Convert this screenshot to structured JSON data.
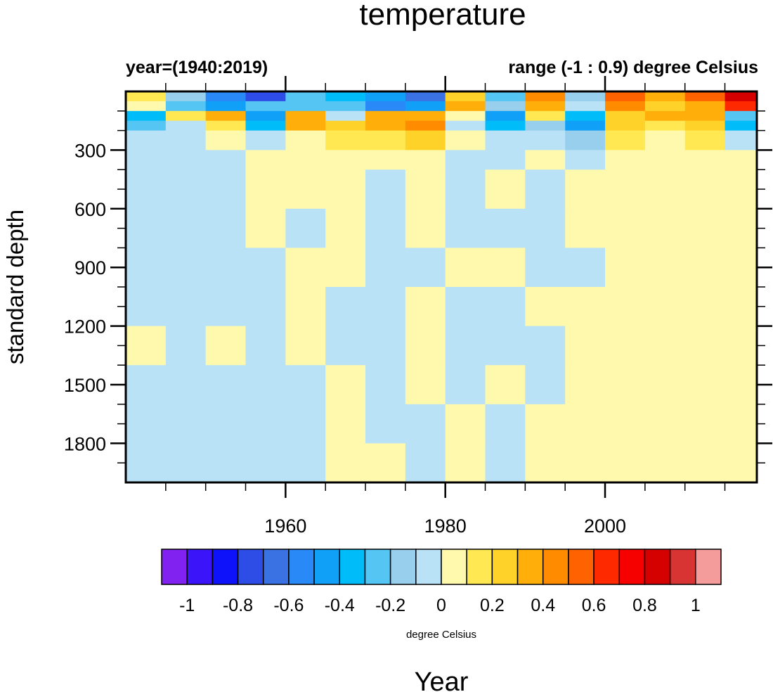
{
  "chart_data": {
    "type": "heatmap",
    "title": "temperature",
    "subtitle_left": "year=(1940:2019)",
    "subtitle_right": "range (-1 : 0.9) degree Celsius",
    "xlabel": "Year",
    "ylabel": "standard depth",
    "xlim": [
      1940,
      2019
    ],
    "ylim": [
      0,
      2000
    ],
    "y_inverted": true,
    "x_ticks": [
      1960,
      1980,
      2000
    ],
    "x_tick_labels": [
      "1960",
      "1980",
      "2000"
    ],
    "x_minor_step": 5,
    "y_ticks": [
      300,
      600,
      900,
      1200,
      1500,
      1800
    ],
    "y_tick_labels": [
      "300",
      "600",
      "900",
      "1200",
      "1500",
      "1800"
    ],
    "y_minor_step": 100,
    "grid": false,
    "colorbar": {
      "label": "degree Celsius",
      "placement": "bottom",
      "levels": [
        -1.1,
        -1.0,
        -0.9,
        -0.8,
        -0.7,
        -0.6,
        -0.5,
        -0.4,
        -0.3,
        -0.2,
        -0.1,
        0,
        0.1,
        0.2,
        0.3,
        0.4,
        0.5,
        0.6,
        0.7,
        0.8,
        0.9,
        1.0,
        1.1
      ],
      "tick_labels": [
        "-1",
        "-0.8",
        "-0.6",
        "-0.4",
        "-0.2",
        "0",
        "0.2",
        "0.4",
        "0.6",
        "0.8",
        "1"
      ],
      "tick_values": [
        -1,
        -0.8,
        -0.6,
        -0.4,
        -0.2,
        0,
        0.2,
        0.4,
        0.6,
        0.8,
        1
      ],
      "colors": [
        "#8122f0",
        "#3c14fa",
        "#0d12fa",
        "#2e4ce6",
        "#3b72e3",
        "#2889f7",
        "#11a0f7",
        "#00bdf9",
        "#55c5f3",
        "#98cfec",
        "#b9e2f6",
        "#fff9ad",
        "#ffe852",
        "#ffd22a",
        "#ffae0a",
        "#ff8c00",
        "#ff6200",
        "#ff2900",
        "#f60000",
        "#d50000",
        "#d93434",
        "#f49c9c"
      ]
    },
    "x_columns": [
      1940,
      1945,
      1950,
      1955,
      1960,
      1965,
      1970,
      1975,
      1980,
      1985,
      1990,
      1995,
      2000,
      2005,
      2010,
      2015
    ],
    "y_rows": [
      0,
      50,
      100,
      150,
      200,
      300,
      400,
      600,
      800,
      1000,
      1200,
      1400,
      1600,
      1800
    ],
    "row_bottoms": [
      50,
      100,
      150,
      200,
      300,
      400,
      600,
      800,
      1000,
      1200,
      1400,
      1600,
      1800,
      2000
    ],
    "values": [
      [
        0.15,
        -0.2,
        -0.6,
        -0.8,
        -0.3,
        -0.4,
        -0.5,
        -0.7,
        0.2,
        -0.3,
        0.4,
        -0.2,
        0.5,
        0.3,
        0.5,
        0.8
      ],
      [
        0.05,
        -0.3,
        -0.5,
        -0.3,
        -0.3,
        -0.3,
        -0.6,
        -0.5,
        0.3,
        -0.2,
        0.3,
        -0.1,
        0.4,
        0.2,
        0.3,
        0.6
      ],
      [
        -0.4,
        0.1,
        0.3,
        -0.5,
        0.3,
        -0.1,
        0.3,
        0.3,
        0.0,
        -0.5,
        0.1,
        -0.4,
        0.2,
        0.3,
        0.3,
        -0.3
      ],
      [
        -0.3,
        -0.1,
        0.1,
        -0.4,
        0.3,
        0.2,
        0.3,
        0.4,
        -0.1,
        -0.4,
        -0.2,
        -0.5,
        0.2,
        0.1,
        0.2,
        -0.4
      ],
      [
        -0.1,
        -0.05,
        0.05,
        -0.1,
        0.05,
        0.1,
        0.1,
        0.2,
        0.05,
        -0.1,
        -0.05,
        -0.2,
        0.1,
        0.05,
        0.1,
        -0.1
      ],
      [
        -0.05,
        -0.05,
        -0.05,
        0.05,
        0.05,
        0.05,
        0.05,
        0.05,
        -0.05,
        -0.05,
        0.05,
        -0.05,
        0.05,
        0.05,
        0.05,
        0.05
      ],
      [
        -0.05,
        -0.05,
        -0.05,
        0.05,
        0.05,
        0.05,
        -0.05,
        0.05,
        -0.1,
        0.05,
        -0.05,
        0.05,
        0.05,
        0.05,
        0.05,
        0.05
      ],
      [
        -0.05,
        -0.05,
        -0.05,
        0.05,
        -0.05,
        0.05,
        -0.05,
        0.05,
        -0.05,
        -0.05,
        -0.05,
        0.05,
        0.05,
        0.05,
        0.05,
        0.05
      ],
      [
        -0.05,
        -0.05,
        -0.05,
        -0.05,
        0.05,
        0.05,
        -0.05,
        -0.05,
        0.05,
        0.05,
        -0.05,
        -0.05,
        0.05,
        0.05,
        0.05,
        0.05
      ],
      [
        -0.05,
        -0.05,
        -0.05,
        -0.05,
        0.05,
        -0.05,
        -0.05,
        0.05,
        -0.05,
        -0.05,
        0.05,
        0.05,
        0.05,
        0.05,
        0.05,
        0.05
      ],
      [
        0.05,
        -0.05,
        0.05,
        -0.05,
        0.05,
        -0.05,
        -0.05,
        0.05,
        -0.05,
        -0.05,
        -0.05,
        0.05,
        0.05,
        0.05,
        0.05,
        0.05
      ],
      [
        -0.05,
        -0.05,
        -0.05,
        -0.05,
        -0.05,
        0.05,
        -0.05,
        0.05,
        -0.05,
        0.05,
        -0.05,
        0.05,
        0.05,
        0.05,
        0.05,
        0.05
      ],
      [
        -0.05,
        -0.05,
        -0.05,
        -0.05,
        -0.05,
        0.05,
        -0.05,
        -0.05,
        0.05,
        -0.05,
        0.05,
        0.05,
        0.05,
        0.05,
        0.05,
        0.05
      ],
      [
        -0.05,
        -0.05,
        -0.05,
        -0.05,
        -0.05,
        0.05,
        0.05,
        -0.05,
        0.05,
        -0.05,
        0.05,
        0.05,
        0.05,
        0.05,
        0.05,
        0.05
      ]
    ]
  }
}
